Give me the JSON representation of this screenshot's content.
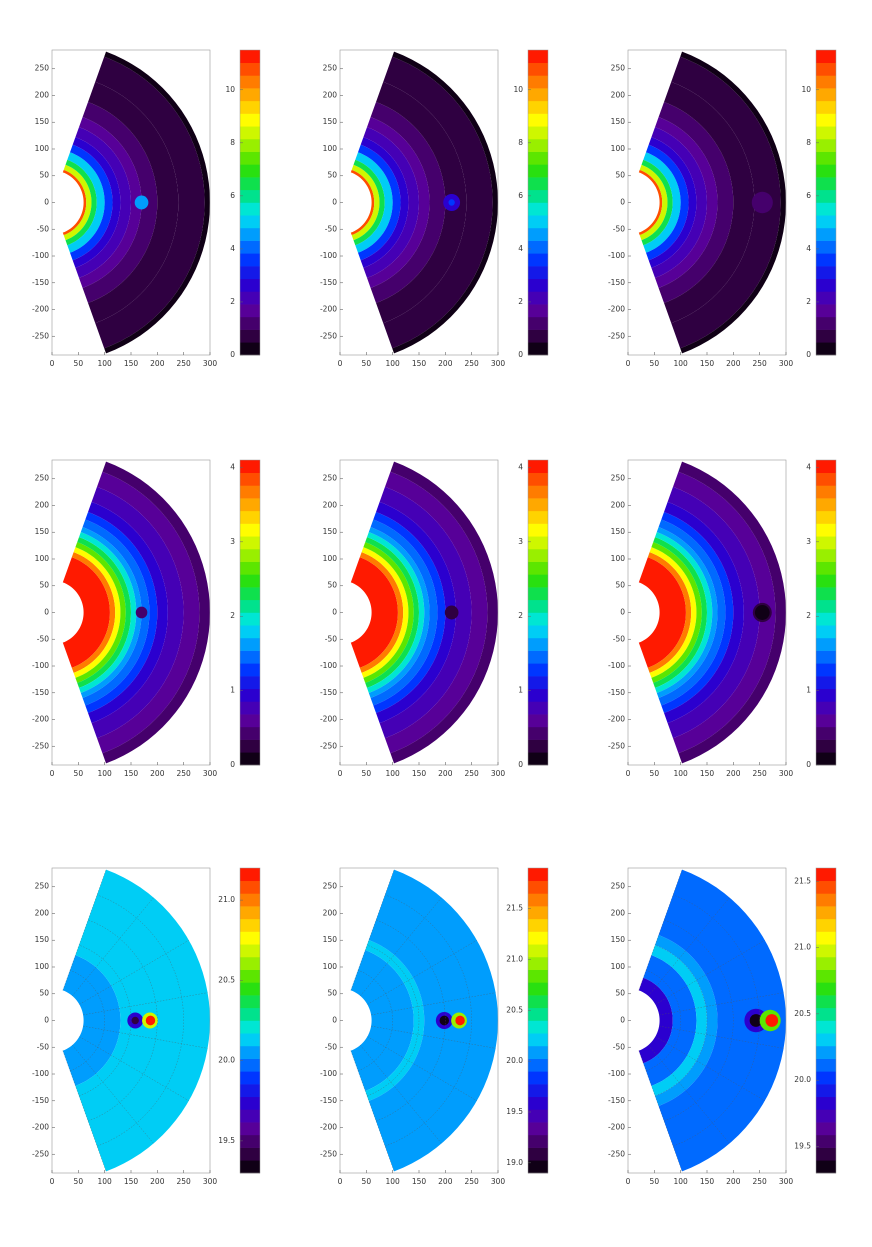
{
  "colormap": [
    "#000000",
    "#3a0050",
    "#5a00a0",
    "#2a00d0",
    "#0030ff",
    "#0090ff",
    "#00e8f0",
    "#00e070",
    "#30e000",
    "#a0f000",
    "#ffff00",
    "#ffb000",
    "#ff6000",
    "#ff0000"
  ],
  "chart_data": [
    {
      "type": "polar-contour",
      "xlim": [
        0,
        300
      ],
      "xticks": [
        0,
        50,
        100,
        150,
        200,
        250,
        300
      ],
      "ylim": [
        -285,
        285
      ],
      "yticks": [
        -250,
        -200,
        -150,
        -100,
        -50,
        0,
        50,
        100,
        150,
        200,
        250
      ],
      "clim": [
        0,
        11.5
      ],
      "cticks": [
        0,
        2,
        4,
        6,
        8,
        10
      ],
      "theta_range": [
        -70,
        70
      ],
      "r_outer": 300,
      "grid": false,
      "rings": {
        "r": [
          60,
          65,
          75,
          85,
          100,
          115,
          130,
          150,
          170,
          200,
          240,
          290
        ],
        "values": [
          10.8,
          8.5,
          6.3,
          4.8,
          3.6,
          2.8,
          2.2,
          1.6,
          1.2,
          0.9,
          0.6,
          0.1
        ]
      },
      "features": [
        {
          "x": 170,
          "y": 0,
          "r": 13,
          "value": 4.6
        }
      ]
    },
    {
      "type": "polar-contour",
      "xlim": [
        0,
        300
      ],
      "xticks": [
        0,
        50,
        100,
        150,
        200,
        250,
        300
      ],
      "ylim": [
        -285,
        285
      ],
      "yticks": [
        -250,
        -200,
        -150,
        -100,
        -50,
        0,
        50,
        100,
        150,
        200,
        250
      ],
      "clim": [
        0,
        11.5
      ],
      "cticks": [
        0,
        2,
        4,
        6,
        8,
        10
      ],
      "theta_range": [
        -70,
        70
      ],
      "r_outer": 300,
      "grid": false,
      "rings": {
        "r": [
          60,
          65,
          75,
          85,
          100,
          115,
          130,
          150,
          170,
          200,
          240,
          290
        ],
        "values": [
          10.8,
          8.5,
          6.3,
          4.8,
          3.6,
          2.8,
          2.2,
          1.6,
          1.2,
          0.9,
          0.6,
          0.1
        ]
      },
      "features": [
        {
          "x": 212,
          "y": 0,
          "r": 16,
          "value": 2.6
        },
        {
          "x": 212,
          "y": 0,
          "r": 6,
          "value": 3.6
        }
      ]
    },
    {
      "type": "polar-contour",
      "xlim": [
        0,
        300
      ],
      "xticks": [
        0,
        50,
        100,
        150,
        200,
        250,
        300
      ],
      "ylim": [
        -285,
        285
      ],
      "yticks": [
        -250,
        -200,
        -150,
        -100,
        -50,
        0,
        50,
        100,
        150,
        200,
        250
      ],
      "clim": [
        0,
        11.5
      ],
      "cticks": [
        0,
        2,
        4,
        6,
        8,
        10
      ],
      "theta_range": [
        -70,
        70
      ],
      "r_outer": 300,
      "grid": false,
      "rings": {
        "r": [
          60,
          65,
          75,
          85,
          100,
          115,
          130,
          150,
          170,
          200,
          240,
          290
        ],
        "values": [
          10.8,
          8.5,
          6.3,
          4.8,
          3.6,
          2.8,
          2.2,
          1.6,
          1.2,
          0.9,
          0.6,
          0.1
        ]
      },
      "features": [
        {
          "x": 255,
          "y": 0,
          "r": 20,
          "value": 1.3
        }
      ]
    },
    {
      "type": "polar-contour",
      "xlim": [
        0,
        300
      ],
      "xticks": [
        0,
        50,
        100,
        150,
        200,
        250,
        300
      ],
      "ylim": [
        -285,
        285
      ],
      "yticks": [
        -250,
        -200,
        -150,
        -100,
        -50,
        0,
        50,
        100,
        150,
        200,
        250
      ],
      "clim": [
        0,
        4.1
      ],
      "cticks": [
        0,
        1,
        2,
        3,
        4
      ],
      "theta_range": [
        -70,
        70
      ],
      "r_outer": 300,
      "grid": false,
      "rings": {
        "r": [
          60,
          110,
          120,
          130,
          140,
          150,
          160,
          170,
          185,
          200,
          220,
          250,
          280
        ],
        "values": [
          4.0,
          3.6,
          3.1,
          2.7,
          2.3,
          2.0,
          1.7,
          1.5,
          1.2,
          1.0,
          0.8,
          0.6,
          0.5
        ]
      },
      "features": [
        {
          "x": 170,
          "y": 0,
          "r": 11,
          "value": 0.5
        }
      ]
    },
    {
      "type": "polar-contour",
      "xlim": [
        0,
        300
      ],
      "xticks": [
        0,
        50,
        100,
        150,
        200,
        250,
        300
      ],
      "ylim": [
        -285,
        285
      ],
      "yticks": [
        -250,
        -200,
        -150,
        -100,
        -50,
        0,
        50,
        100,
        150,
        200,
        250
      ],
      "clim": [
        0,
        4.1
      ],
      "cticks": [
        0,
        1,
        2,
        3,
        4
      ],
      "theta_range": [
        -70,
        70
      ],
      "r_outer": 300,
      "grid": false,
      "rings": {
        "r": [
          60,
          110,
          120,
          130,
          140,
          150,
          160,
          170,
          185,
          200,
          220,
          250,
          280
        ],
        "values": [
          4.0,
          3.6,
          3.1,
          2.7,
          2.3,
          2.0,
          1.7,
          1.5,
          1.2,
          1.0,
          0.8,
          0.6,
          0.5
        ]
      },
      "features": [
        {
          "x": 212,
          "y": 0,
          "r": 13,
          "value": 0.2
        }
      ]
    },
    {
      "type": "polar-contour",
      "xlim": [
        0,
        300
      ],
      "xticks": [
        0,
        50,
        100,
        150,
        200,
        250,
        300
      ],
      "ylim": [
        -285,
        285
      ],
      "yticks": [
        -250,
        -200,
        -150,
        -100,
        -50,
        0,
        50,
        100,
        150,
        200,
        250
      ],
      "clim": [
        0,
        4.1
      ],
      "cticks": [
        0,
        1,
        2,
        3,
        4
      ],
      "theta_range": [
        -70,
        70
      ],
      "r_outer": 300,
      "grid": false,
      "rings": {
        "r": [
          60,
          110,
          120,
          130,
          140,
          150,
          160,
          170,
          185,
          200,
          220,
          250,
          280
        ],
        "values": [
          4.0,
          3.6,
          3.1,
          2.7,
          2.3,
          2.0,
          1.7,
          1.5,
          1.2,
          1.0,
          0.8,
          0.6,
          0.5
        ]
      },
      "features": [
        {
          "x": 255,
          "y": 0,
          "r": 18,
          "value": 0.3
        },
        {
          "x": 255,
          "y": 0,
          "r": 14,
          "value": 0.02
        }
      ]
    },
    {
      "type": "polar-contour",
      "xlim": [
        0,
        300
      ],
      "xticks": [
        0,
        50,
        100,
        150,
        200,
        250,
        300
      ],
      "ylim": [
        -285,
        285
      ],
      "yticks": [
        -250,
        -200,
        -150,
        -100,
        -50,
        0,
        50,
        100,
        150,
        200,
        250
      ],
      "clim": [
        19.3,
        21.2
      ],
      "cticks": [
        {
          "value": 19.5,
          "label": "19.5"
        },
        {
          "value": 20,
          "label": "20.0"
        },
        20.5,
        {
          "value": 21,
          "label": "21.0"
        }
      ],
      "theta_range": [
        -70,
        70
      ],
      "r_outer": 300,
      "grid": true,
      "rings": {
        "r": [
          60,
          130
        ],
        "values": [
          20.05,
          20.15
        ]
      },
      "features": [
        {
          "x": 158,
          "y": 0,
          "r": 15,
          "value": 19.75
        },
        {
          "x": 158,
          "y": 0,
          "r": 7,
          "value": 19.4
        },
        {
          "x": 186,
          "y": 0,
          "r": 15,
          "value": 20.7
        },
        {
          "x": 187,
          "y": 0,
          "r": 9,
          "value": 21.15
        }
      ]
    },
    {
      "type": "polar-contour",
      "xlim": [
        0,
        300
      ],
      "xticks": [
        0,
        50,
        100,
        150,
        200,
        250,
        300
      ],
      "ylim": [
        -285,
        285
      ],
      "yticks": [
        -250,
        -200,
        -150,
        -100,
        -50,
        0,
        50,
        100,
        150,
        200,
        250
      ],
      "clim": [
        18.9,
        21.9
      ],
      "cticks": [
        {
          "value": 19,
          "label": "19.0"
        },
        19.5,
        {
          "value": 20,
          "label": "20.0"
        },
        20.5,
        {
          "value": 21,
          "label": "21.0"
        },
        21.5
      ],
      "theta_range": [
        -70,
        70
      ],
      "r_outer": 300,
      "grid": true,
      "rings": {
        "r": [
          60,
          140,
          160
        ],
        "values": [
          20.1,
          20.2,
          20.1
        ]
      },
      "features": [
        {
          "x": 198,
          "y": 0,
          "r": 16,
          "value": 19.6
        },
        {
          "x": 198,
          "y": 0,
          "r": 9,
          "value": 19.0
        },
        {
          "x": 226,
          "y": 0,
          "r": 15,
          "value": 20.9
        },
        {
          "x": 228,
          "y": 0,
          "r": 9,
          "value": 21.8
        }
      ]
    },
    {
      "type": "polar-contour",
      "xlim": [
        0,
        300
      ],
      "xticks": [
        0,
        50,
        100,
        150,
        200,
        250,
        300
      ],
      "ylim": [
        -285,
        285
      ],
      "yticks": [
        -250,
        -200,
        -150,
        -100,
        -50,
        0,
        50,
        100,
        150,
        200,
        250
      ],
      "clim": [
        19.3,
        21.6
      ],
      "cticks": [
        {
          "value": 19.5,
          "label": "19.5"
        },
        {
          "value": 20,
          "label": "20.0"
        },
        20.5,
        {
          "value": 21,
          "label": "21.0"
        },
        21.5
      ],
      "theta_range": [
        -70,
        70
      ],
      "r_outer": 300,
      "grid": true,
      "rings": {
        "r": [
          60,
          85,
          130,
          150,
          170
        ],
        "values": [
          19.85,
          20.15,
          20.3,
          20.2,
          20.15
        ]
      },
      "features": [
        {
          "x": 243,
          "y": 0,
          "r": 22,
          "value": 19.8
        },
        {
          "x": 243,
          "y": 0,
          "r": 12,
          "value": 19.3
        },
        {
          "x": 270,
          "y": 0,
          "r": 20,
          "value": 20.8
        },
        {
          "x": 273,
          "y": 0,
          "r": 12,
          "value": 21.55
        }
      ]
    }
  ]
}
